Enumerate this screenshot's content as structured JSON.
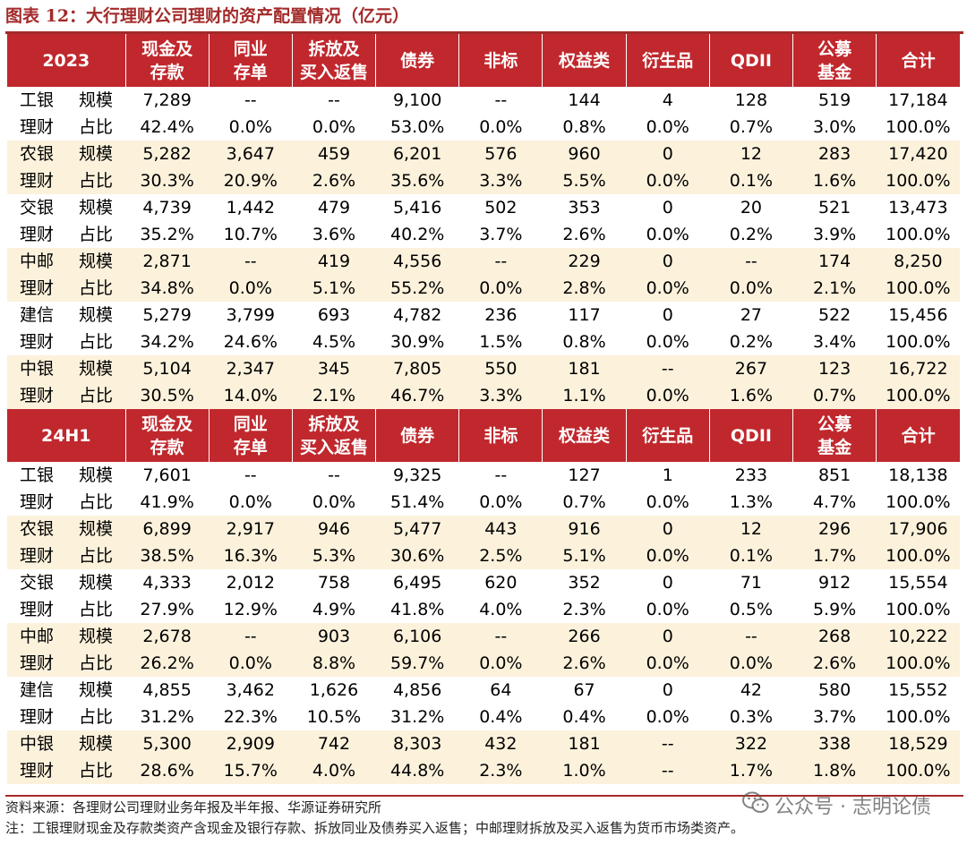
{
  "title": "图表 12：大行理财公司理财的资产配置情况（亿元）",
  "columns": [
    [
      "现金及",
      "存款"
    ],
    [
      "同业",
      "存单"
    ],
    [
      "拆放及",
      "买入返售"
    ],
    [
      "债券"
    ],
    [
      "非标"
    ],
    [
      "权益类"
    ],
    [
      "衍生品"
    ],
    [
      "QDII"
    ],
    [
      "公募",
      "基金"
    ],
    [
      "合计"
    ]
  ],
  "sections": [
    {
      "period": "2023",
      "banks": [
        {
          "name": [
            "工银",
            "理财"
          ],
          "scale": [
            "7,289",
            "--",
            "--",
            "9,100",
            "--",
            "144",
            "4",
            "128",
            "519",
            "17,184"
          ],
          "share": [
            "42.4%",
            "0.0%",
            "0.0%",
            "53.0%",
            "0.0%",
            "0.8%",
            "0.0%",
            "0.7%",
            "3.0%",
            "100.0%"
          ]
        },
        {
          "name": [
            "农银",
            "理财"
          ],
          "scale": [
            "5,282",
            "3,647",
            "459",
            "6,201",
            "576",
            "960",
            "0",
            "12",
            "283",
            "17,420"
          ],
          "share": [
            "30.3%",
            "20.9%",
            "2.6%",
            "35.6%",
            "3.3%",
            "5.5%",
            "0.0%",
            "0.1%",
            "1.6%",
            "100.0%"
          ]
        },
        {
          "name": [
            "交银",
            "理财"
          ],
          "scale": [
            "4,739",
            "1,442",
            "479",
            "5,416",
            "502",
            "353",
            "0",
            "20",
            "521",
            "13,473"
          ],
          "share": [
            "35.2%",
            "10.7%",
            "3.6%",
            "40.2%",
            "3.7%",
            "2.6%",
            "0.0%",
            "0.2%",
            "3.9%",
            "100.0%"
          ]
        },
        {
          "name": [
            "中邮",
            "理财"
          ],
          "scale": [
            "2,871",
            "--",
            "419",
            "4,556",
            "--",
            "229",
            "0",
            "--",
            "174",
            "8,250"
          ],
          "share": [
            "34.8%",
            "0.0%",
            "5.1%",
            "55.2%",
            "0.0%",
            "2.8%",
            "0.0%",
            "0.0%",
            "2.1%",
            "100.0%"
          ]
        },
        {
          "name": [
            "建信",
            "理财"
          ],
          "scale": [
            "5,279",
            "3,799",
            "693",
            "4,782",
            "236",
            "117",
            "0",
            "27",
            "522",
            "15,456"
          ],
          "share": [
            "34.2%",
            "24.6%",
            "4.5%",
            "30.9%",
            "1.5%",
            "0.8%",
            "0.0%",
            "0.2%",
            "3.4%",
            "100.0%"
          ]
        },
        {
          "name": [
            "中银",
            "理财"
          ],
          "scale": [
            "5,104",
            "2,347",
            "345",
            "7,805",
            "550",
            "181",
            "--",
            "267",
            "123",
            "16,722"
          ],
          "share": [
            "30.5%",
            "14.0%",
            "2.1%",
            "46.7%",
            "3.3%",
            "1.1%",
            "0.0%",
            "1.6%",
            "0.7%",
            "100.0%"
          ]
        }
      ]
    },
    {
      "period": "24H1",
      "banks": [
        {
          "name": [
            "工银",
            "理财"
          ],
          "scale": [
            "7,601",
            "--",
            "--",
            "9,325",
            "--",
            "127",
            "1",
            "233",
            "851",
            "18,138"
          ],
          "share": [
            "41.9%",
            "0.0%",
            "0.0%",
            "51.4%",
            "0.0%",
            "0.7%",
            "0.0%",
            "1.3%",
            "4.7%",
            "100.0%"
          ]
        },
        {
          "name": [
            "农银",
            "理财"
          ],
          "scale": [
            "6,899",
            "2,917",
            "946",
            "5,477",
            "443",
            "916",
            "0",
            "12",
            "296",
            "17,906"
          ],
          "share": [
            "38.5%",
            "16.3%",
            "5.3%",
            "30.6%",
            "2.5%",
            "5.1%",
            "0.0%",
            "0.1%",
            "1.7%",
            "100.0%"
          ]
        },
        {
          "name": [
            "交银",
            "理财"
          ],
          "scale": [
            "4,333",
            "2,012",
            "758",
            "6,495",
            "620",
            "352",
            "0",
            "71",
            "912",
            "15,554"
          ],
          "share": [
            "27.9%",
            "12.9%",
            "4.9%",
            "41.8%",
            "4.0%",
            "2.3%",
            "0.0%",
            "0.5%",
            "5.9%",
            "100.0%"
          ]
        },
        {
          "name": [
            "中邮",
            "理财"
          ],
          "scale": [
            "2,678",
            "--",
            "903",
            "6,106",
            "--",
            "266",
            "0",
            "--",
            "268",
            "10,222"
          ],
          "share": [
            "26.2%",
            "0.0%",
            "8.8%",
            "59.7%",
            "0.0%",
            "2.6%",
            "0.0%",
            "0.0%",
            "2.6%",
            "100.0%"
          ]
        },
        {
          "name": [
            "建信",
            "理财"
          ],
          "scale": [
            "4,855",
            "3,462",
            "1,626",
            "4,856",
            "64",
            "67",
            "0",
            "42",
            "580",
            "15,552"
          ],
          "share": [
            "31.2%",
            "22.3%",
            "10.5%",
            "31.2%",
            "0.4%",
            "0.4%",
            "0.0%",
            "0.3%",
            "3.7%",
            "100.0%"
          ]
        },
        {
          "name": [
            "中银",
            "理财"
          ],
          "scale": [
            "5,300",
            "2,909",
            "742",
            "8,303",
            "432",
            "181",
            "--",
            "322",
            "338",
            "18,529"
          ],
          "share": [
            "28.6%",
            "15.7%",
            "4.0%",
            "44.8%",
            "2.3%",
            "1.0%",
            "--",
            "1.7%",
            "1.8%",
            "100.0%"
          ]
        }
      ]
    }
  ],
  "row_labels": {
    "scale": "规模",
    "share": "占比"
  },
  "notes": {
    "source": "资料来源：各理财公司理财业务年报及半年报、华源证券研究所",
    "note": "注：工银理财现金及存款类资产含现金及银行存款、拆放同业及债券买入返售；中邮理财拆放及买入返售为货币市场类资产。"
  },
  "watermark": "公众号 · 志明论债",
  "colors": {
    "header_bg": "#c0282d",
    "band_bg": "#fcf2dc",
    "title": "#a32a2a"
  }
}
